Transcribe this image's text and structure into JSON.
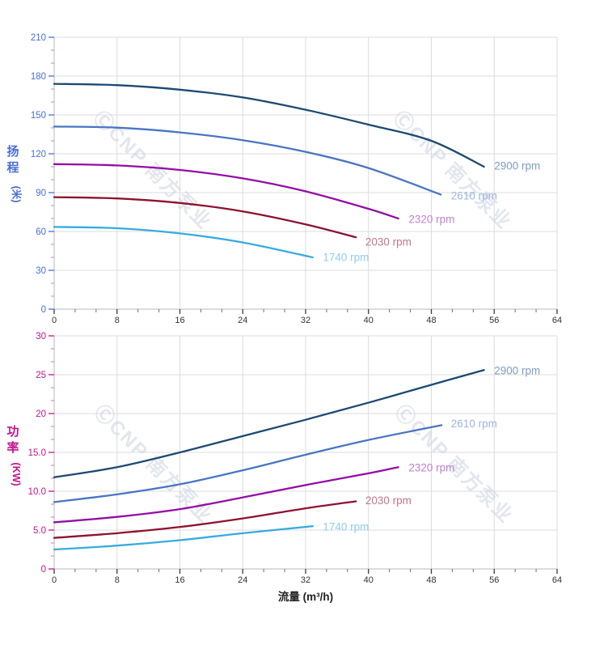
{
  "x_axis": {
    "label": "流量 (m³/h)",
    "xlim": [
      0,
      64
    ],
    "ticks": [
      "0",
      "8",
      "16",
      "24",
      "32",
      "40",
      "48",
      "56",
      "64"
    ],
    "minor_per_major": 3,
    "tick_label_color": "#333333"
  },
  "watermark": {
    "text": "ⒸCNP 南方泵业",
    "color": "#ccd3e0",
    "opacity": 0.55
  },
  "chart_data": [
    {
      "type": "line",
      "name": "head-curve-chart",
      "y_title": "扬程",
      "y_unit": "(米)",
      "y_color": "#4a6fd4",
      "y_minor_color": "#8aa2e4",
      "ylim": [
        0,
        210
      ],
      "yticks": [
        "0",
        "30",
        "60",
        "90",
        "120",
        "150",
        "180",
        "210"
      ],
      "grid": true,
      "legend_position": "inline-labels",
      "series": [
        {
          "label": "2900 rpm",
          "color": "#1c4a73",
          "label_color": "#7f9dc1",
          "label_pos": [
            56,
            110.5
          ],
          "points": [
            [
              0,
              174
            ],
            [
              8,
              173
            ],
            [
              16,
              169.5
            ],
            [
              24,
              163.5
            ],
            [
              32,
              154
            ],
            [
              40,
              142.5
            ],
            [
              48,
              130
            ],
            [
              54.7,
              110
            ]
          ]
        },
        {
          "label": "2610 rpm",
          "color": "#4a75c4",
          "label_color": "#9db4e0",
          "label_pos": [
            50.5,
            87.5
          ],
          "points": [
            [
              0,
              141
            ],
            [
              8,
              140.2
            ],
            [
              16,
              136.5
            ],
            [
              24,
              130.5
            ],
            [
              32,
              121.5
            ],
            [
              40,
              109
            ],
            [
              49.2,
              88.5
            ]
          ]
        },
        {
          "label": "2320 rpm",
          "color": "#930da6",
          "label_color": "#c07fd2",
          "label_pos": [
            45.1,
            69.5
          ],
          "points": [
            [
              0,
              112
            ],
            [
              8,
              111
            ],
            [
              16,
              107.5
            ],
            [
              24,
              101
            ],
            [
              32,
              91
            ],
            [
              40,
              77.5
            ],
            [
              43.8,
              70
            ]
          ]
        },
        {
          "label": "2030 rpm",
          "color": "#8e1230",
          "label_color": "#c2758d",
          "label_pos": [
            39.6,
            52
          ],
          "points": [
            [
              0,
              86.5
            ],
            [
              8,
              85.5
            ],
            [
              16,
              82
            ],
            [
              24,
              75.5
            ],
            [
              32,
              65.5
            ],
            [
              38.4,
              55.5
            ]
          ]
        },
        {
          "label": "1740 rpm",
          "color": "#38abdf",
          "label_color": "#8ecdf0",
          "label_pos": [
            34.2,
            40
          ],
          "points": [
            [
              0,
              63.5
            ],
            [
              8,
              62.5
            ],
            [
              16,
              58.5
            ],
            [
              24,
              51.5
            ],
            [
              32.9,
              40
            ]
          ]
        }
      ]
    },
    {
      "type": "line",
      "name": "power-curve-chart",
      "y_title": "功率",
      "y_unit": "(KW)",
      "y_color": "#c4158c",
      "y_minor_color": "#e36db8",
      "ylim": [
        0,
        30
      ],
      "yticks": [
        "0",
        "5.0",
        "10.0",
        "15.0",
        "20",
        "25",
        "30"
      ],
      "grid": true,
      "legend_position": "inline-labels",
      "series": [
        {
          "label": "2900 rpm",
          "color": "#1c4a73",
          "label_color": "#7f9dc1",
          "label_pos": [
            56,
            25.5
          ],
          "points": [
            [
              0,
              11.8
            ],
            [
              8,
              13.1
            ],
            [
              16,
              15.0
            ],
            [
              24,
              17.1
            ],
            [
              32,
              19.2
            ],
            [
              40,
              21.4
            ],
            [
              48,
              23.7
            ],
            [
              54.7,
              25.6
            ]
          ]
        },
        {
          "label": "2610 rpm",
          "color": "#4a75c4",
          "label_color": "#9db4e0",
          "label_pos": [
            50.5,
            18.7
          ],
          "points": [
            [
              0,
              8.6
            ],
            [
              8,
              9.6
            ],
            [
              16,
              10.9
            ],
            [
              24,
              12.7
            ],
            [
              32,
              14.7
            ],
            [
              40,
              16.6
            ],
            [
              49.3,
              18.5
            ]
          ]
        },
        {
          "label": "2320 rpm",
          "color": "#930da6",
          "label_color": "#c07fd2",
          "label_pos": [
            45.1,
            13.0
          ],
          "points": [
            [
              0,
              6.0
            ],
            [
              8,
              6.7
            ],
            [
              16,
              7.7
            ],
            [
              24,
              9.2
            ],
            [
              32,
              10.8
            ],
            [
              40,
              12.3
            ],
            [
              43.8,
              13.1
            ]
          ]
        },
        {
          "label": "2030 rpm",
          "color": "#8e1230",
          "label_color": "#c2758d",
          "label_pos": [
            39.6,
            8.8
          ],
          "points": [
            [
              0,
              4.0
            ],
            [
              8,
              4.6
            ],
            [
              16,
              5.4
            ],
            [
              24,
              6.5
            ],
            [
              32,
              7.8
            ],
            [
              38.4,
              8.7
            ]
          ]
        },
        {
          "label": "1740 rpm",
          "color": "#38abdf",
          "label_color": "#8ecdf0",
          "label_pos": [
            34.2,
            5.4
          ],
          "points": [
            [
              0,
              2.5
            ],
            [
              8,
              3.0
            ],
            [
              16,
              3.7
            ],
            [
              24,
              4.6
            ],
            [
              32.9,
              5.5
            ]
          ]
        }
      ]
    }
  ]
}
